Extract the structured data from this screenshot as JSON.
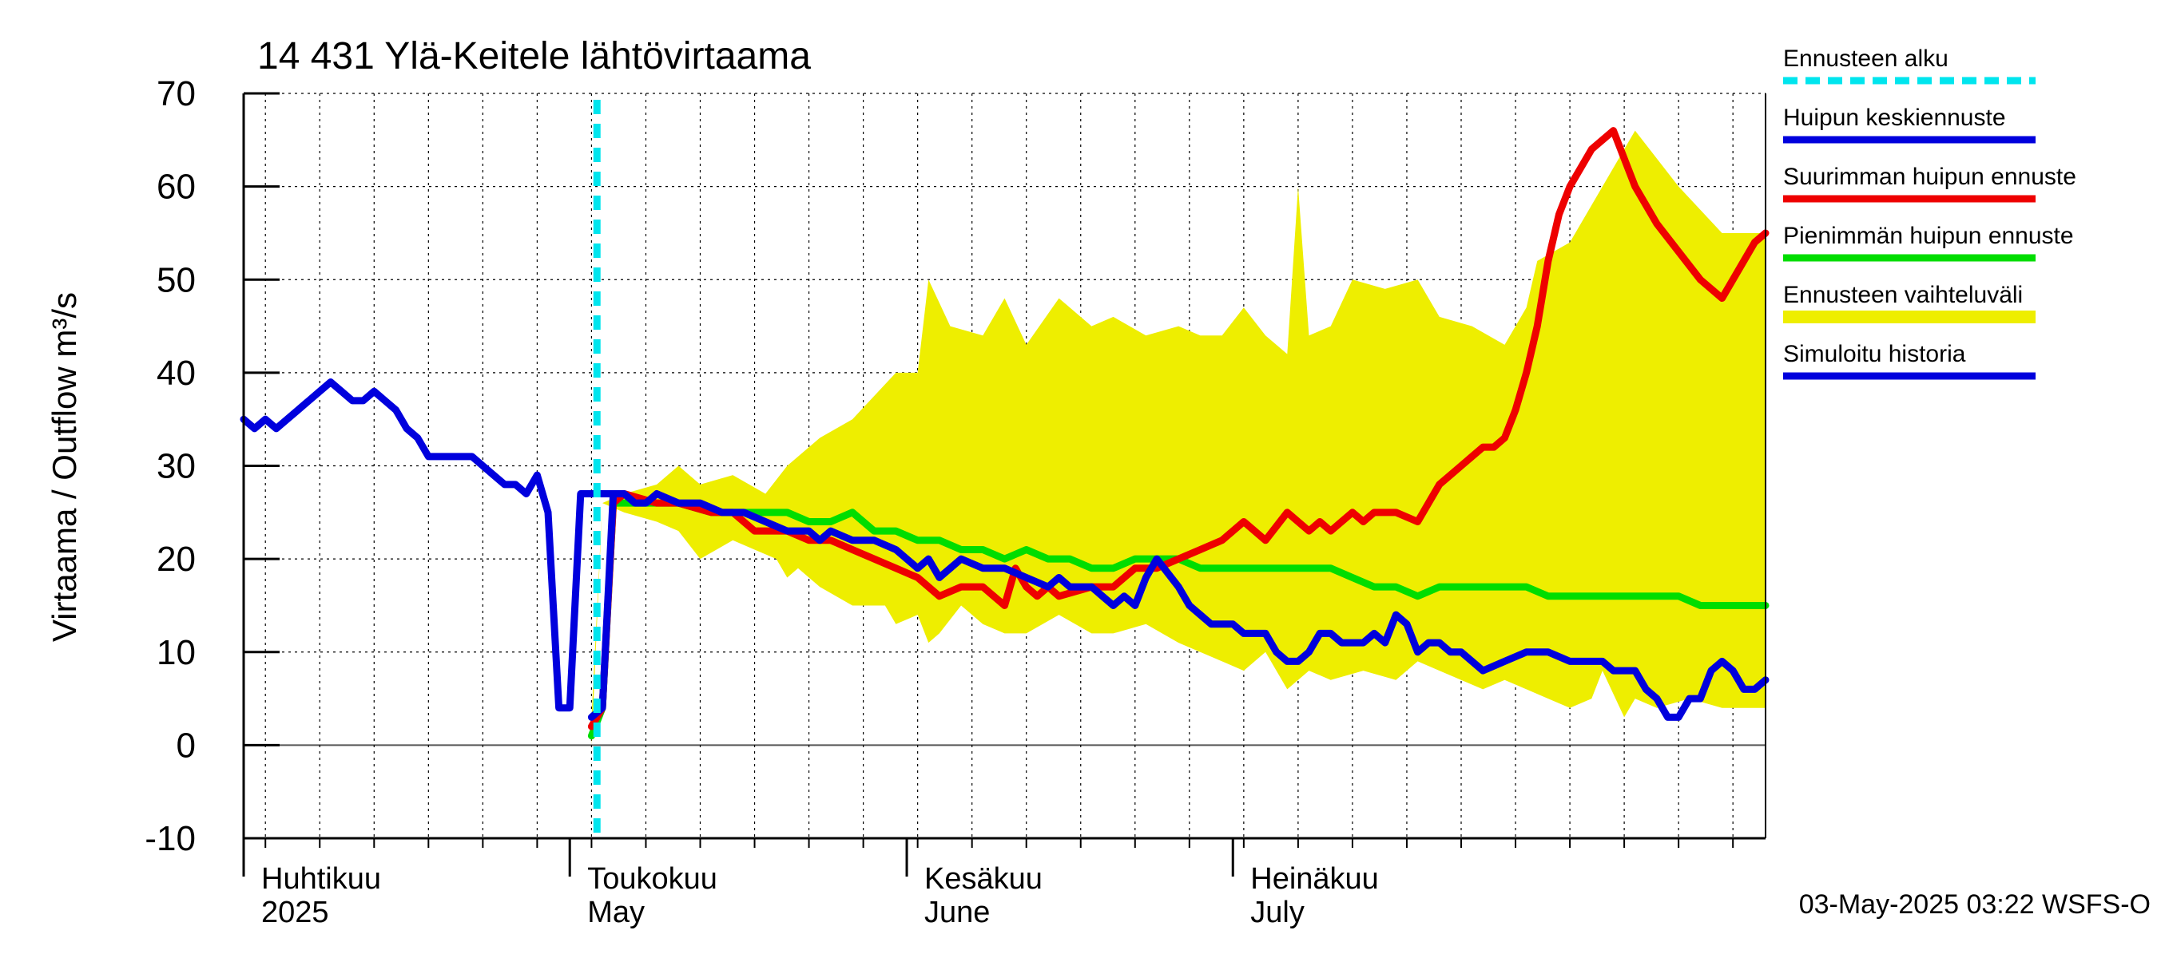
{
  "chart_data": {
    "type": "line",
    "title": "14 431 Ylä-Keitele lähtövirtaama",
    "ylabel": "Virtaama / Outflow    m³/s",
    "ylim": [
      -10,
      70
    ],
    "yticks": [
      -10,
      0,
      10,
      20,
      30,
      40,
      50,
      60,
      70
    ],
    "x_range_days": [
      0,
      140
    ],
    "month_labels": [
      {
        "day": 0,
        "fi": "Huhtikuu",
        "en": "2025"
      },
      {
        "day": 30,
        "fi": "Toukokuu",
        "en": "May"
      },
      {
        "day": 61,
        "fi": "Kesäkuu",
        "en": "June"
      },
      {
        "day": 91,
        "fi": "Heinäkuu",
        "en": "July"
      }
    ],
    "forecast_start_day": 32.5,
    "legend": [
      {
        "key": "forecast_start",
        "label": "Ennusteen alku",
        "color": "#00e5ee",
        "style": "dashed"
      },
      {
        "key": "mean_peak",
        "label": "Huipun keskiennuste",
        "color": "#0000dd",
        "style": "solid"
      },
      {
        "key": "max_peak",
        "label": "Suurimman huipun ennuste",
        "color": "#ee0000",
        "style": "solid"
      },
      {
        "key": "min_peak",
        "label": "Pienimmän huipun ennuste",
        "color": "#00dd00",
        "style": "solid"
      },
      {
        "key": "range",
        "label": "Ennusteen vaihteluväli",
        "color": "#eeee00",
        "style": "band"
      },
      {
        "key": "history",
        "label": "Simuloitu historia",
        "color": "#0000dd",
        "style": "solid"
      }
    ],
    "series": [
      {
        "name": "Ennusteen vaihteluväli (yläraja)",
        "x": [
          32,
          33,
          35,
          38,
          40,
          42,
          45,
          48,
          50,
          53,
          56,
          60,
          62,
          63,
          65,
          68,
          70,
          72,
          75,
          78,
          80,
          83,
          86,
          88,
          90,
          92,
          94,
          96,
          97,
          98,
          100,
          102,
          105,
          108,
          110,
          113,
          116,
          118,
          119,
          122,
          125,
          128,
          132,
          136,
          140
        ],
        "values": [
          3,
          26,
          27,
          28,
          30,
          28,
          29,
          27,
          30,
          33,
          35,
          40,
          40,
          50,
          45,
          44,
          48,
          43,
          48,
          45,
          46,
          44,
          45,
          44,
          44,
          47,
          44,
          42,
          60,
          44,
          45,
          50,
          49,
          50,
          46,
          45,
          43,
          47,
          52,
          54,
          60,
          66,
          60,
          55,
          55
        ]
      },
      {
        "name": "Ennusteen vaihteluväli (alaraja)",
        "x": [
          32,
          33,
          35,
          38,
          40,
          42,
          45,
          47,
          49,
          50,
          51,
          53,
          56,
          59,
          60,
          62,
          63,
          64,
          66,
          68,
          70,
          72,
          75,
          78,
          80,
          83,
          86,
          88,
          90,
          92,
          94,
          96,
          98,
          100,
          103,
          106,
          108,
          110,
          112,
          114,
          116,
          118,
          120,
          122,
          124,
          125,
          127,
          128,
          130,
          133,
          136,
          140
        ],
        "values": [
          0,
          26,
          25,
          24,
          23,
          20,
          22,
          21,
          20,
          18,
          19,
          17,
          15,
          15,
          13,
          14,
          11,
          12,
          15,
          13,
          12,
          12,
          14,
          12,
          12,
          13,
          11,
          10,
          9,
          8,
          10,
          6,
          8,
          7,
          8,
          7,
          9,
          8,
          7,
          6,
          7,
          6,
          5,
          4,
          5,
          8,
          3,
          5,
          4,
          5,
          4,
          4
        ]
      },
      {
        "name": "Suurimman huipun ennuste",
        "x": [
          32,
          33,
          34,
          35,
          38,
          40,
          43,
          45,
          47,
          50,
          52,
          54,
          56,
          58,
          60,
          62,
          64,
          66,
          68,
          70,
          71,
          72,
          73,
          74,
          75,
          78,
          80,
          82,
          84,
          86,
          88,
          90,
          92,
          94,
          96,
          98,
          99,
          100,
          101,
          102,
          103,
          104,
          105,
          106,
          108,
          110,
          111,
          112,
          113,
          114,
          115,
          116,
          117,
          118,
          119,
          120,
          121,
          122,
          124,
          126,
          128,
          130,
          132,
          134,
          136,
          138,
          139,
          140
        ],
        "values": [
          2,
          4,
          26,
          27,
          26,
          26,
          25,
          25,
          23,
          23,
          22,
          22,
          21,
          20,
          19,
          18,
          16,
          17,
          17,
          15,
          19,
          17,
          16,
          17,
          16,
          17,
          17,
          19,
          19,
          20,
          21,
          22,
          24,
          22,
          25,
          23,
          24,
          23,
          24,
          25,
          24,
          25,
          25,
          25,
          24,
          28,
          29,
          30,
          31,
          32,
          32,
          33,
          36,
          40,
          45,
          52,
          57,
          60,
          64,
          66,
          60,
          56,
          53,
          50,
          48,
          52,
          54,
          55
        ]
      },
      {
        "name": "Pienimmän huipun ennuste",
        "x": [
          32,
          33,
          34,
          35,
          38,
          40,
          43,
          45,
          47,
          50,
          52,
          54,
          56,
          58,
          60,
          62,
          64,
          66,
          68,
          70,
          72,
          74,
          76,
          78,
          80,
          82,
          84,
          86,
          88,
          90,
          92,
          94,
          96,
          98,
          100,
          102,
          104,
          106,
          108,
          110,
          112,
          114,
          116,
          118,
          120,
          122,
          124,
          126,
          128,
          130,
          132,
          134,
          136,
          138,
          140
        ],
        "values": [
          1,
          4,
          26,
          26,
          26,
          26,
          25,
          25,
          25,
          25,
          24,
          24,
          25,
          23,
          23,
          22,
          22,
          21,
          21,
          20,
          21,
          20,
          20,
          19,
          19,
          20,
          20,
          20,
          19,
          19,
          19,
          19,
          19,
          19,
          19,
          18,
          17,
          17,
          16,
          17,
          17,
          17,
          17,
          17,
          16,
          16,
          16,
          16,
          16,
          16,
          16,
          15,
          15,
          15,
          15
        ]
      },
      {
        "name": "Huipun keskiennuste",
        "x": [
          32,
          33,
          34,
          35,
          36,
          37,
          38,
          40,
          42,
          44,
          46,
          48,
          50,
          52,
          53,
          54,
          56,
          58,
          60,
          61,
          62,
          63,
          64,
          66,
          68,
          70,
          72,
          74,
          75,
          76,
          78,
          79,
          80,
          81,
          82,
          83,
          84,
          86,
          87,
          88,
          89,
          90,
          91,
          92,
          93,
          94,
          95,
          96,
          97,
          98,
          99,
          100,
          101,
          102,
          103,
          104,
          105,
          106,
          107,
          108,
          109,
          110,
          111,
          112,
          114,
          116,
          118,
          120,
          122,
          124,
          125,
          126,
          127,
          128,
          129,
          130,
          131,
          132,
          133,
          134,
          135,
          136,
          137,
          138,
          139,
          140
        ],
        "values": [
          3,
          4,
          27,
          27,
          26,
          26,
          27,
          26,
          26,
          25,
          25,
          24,
          23,
          23,
          22,
          23,
          22,
          22,
          21,
          20,
          19,
          20,
          18,
          20,
          19,
          19,
          18,
          17,
          18,
          17,
          17,
          16,
          15,
          16,
          15,
          18,
          20,
          17,
          15,
          14,
          13,
          13,
          13,
          12,
          12,
          12,
          10,
          9,
          9,
          10,
          12,
          12,
          11,
          11,
          11,
          12,
          11,
          14,
          13,
          10,
          11,
          11,
          10,
          10,
          8,
          9,
          10,
          10,
          9,
          9,
          9,
          8,
          8,
          8,
          6,
          5,
          3,
          3,
          5,
          5,
          8,
          9,
          8,
          6,
          6,
          7
        ]
      },
      {
        "name": "Simuloitu historia",
        "x": [
          0,
          1,
          2,
          3,
          4,
          5,
          6,
          7,
          8,
          9,
          10,
          11,
          12,
          13,
          14,
          15,
          16,
          17,
          18,
          19,
          20,
          21,
          22,
          23,
          24,
          25,
          26,
          27,
          28,
          29,
          30,
          31,
          32,
          33,
          34
        ],
        "values": [
          35,
          34,
          35,
          34,
          35,
          36,
          37,
          38,
          39,
          38,
          37,
          37,
          38,
          37,
          36,
          34,
          33,
          31,
          31,
          31,
          31,
          31,
          30,
          29,
          28,
          28,
          27,
          29,
          25,
          4,
          4,
          27,
          27,
          27,
          27
        ]
      }
    ],
    "footer": "03-May-2025 03:22 WSFS-O"
  }
}
